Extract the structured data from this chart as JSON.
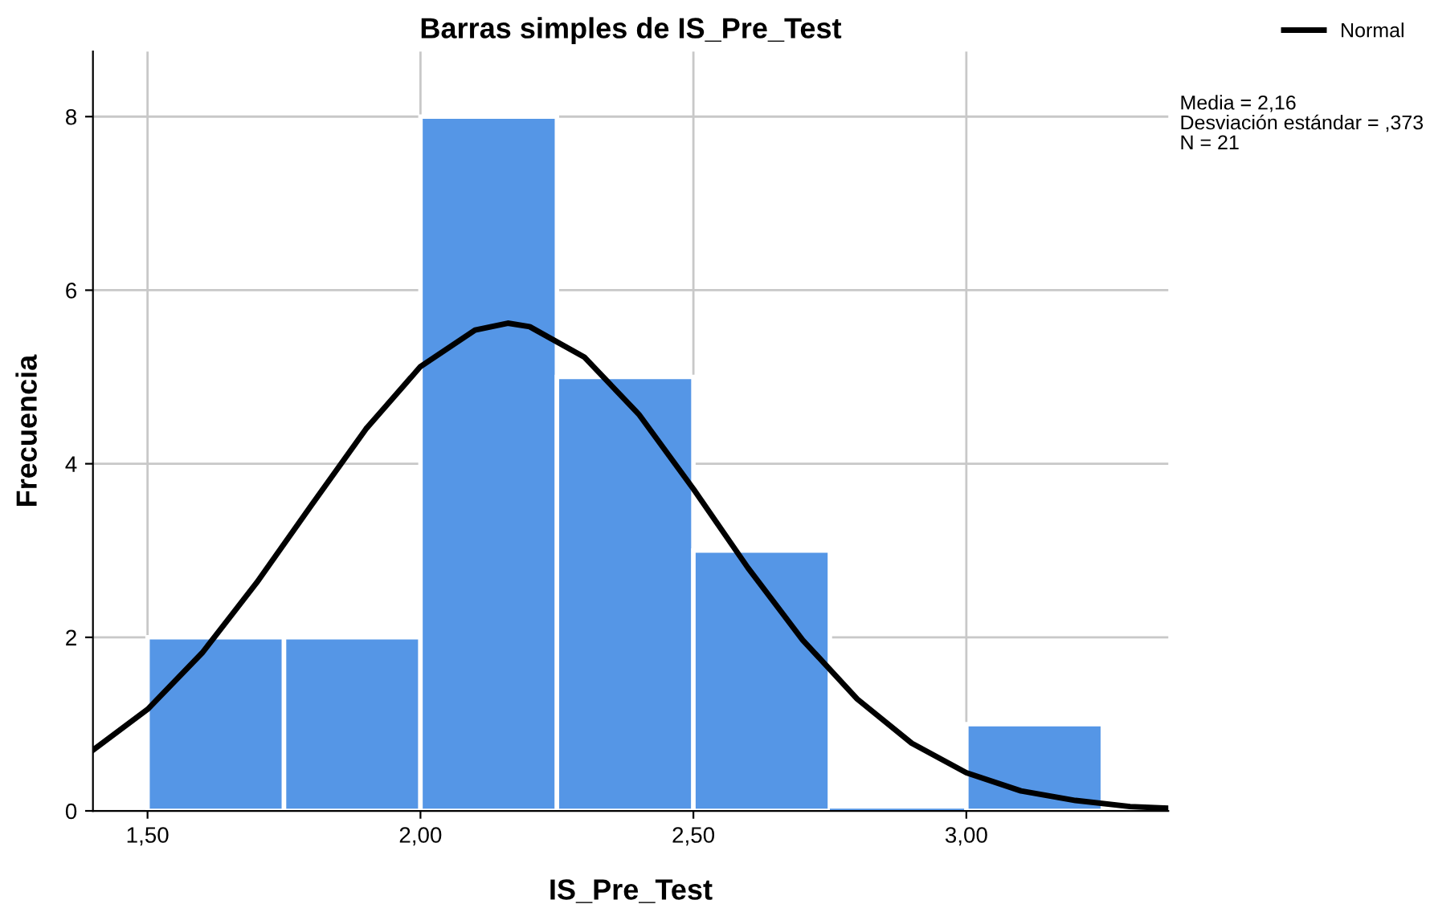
{
  "chart_data": {
    "type": "histogram",
    "title": "Barras simples de IS_Pre_Test",
    "xlabel": "IS_Pre_Test",
    "ylabel": "Frecuencia",
    "bins": [
      1.5,
      1.75,
      2.0,
      2.25,
      2.5,
      2.75,
      3.0,
      3.25
    ],
    "series": [
      {
        "color": "#5596e6",
        "values": [
          2,
          2,
          8,
          5,
          3,
          0,
          1
        ]
      },
      {
        "type": "line",
        "name": "Normal",
        "color": "#000000",
        "x": [
          1.4,
          1.5,
          1.6,
          1.7,
          1.8,
          1.9,
          2.0,
          2.1,
          2.16,
          2.2,
          2.3,
          2.4,
          2.5,
          2.6,
          2.7,
          2.8,
          2.9,
          3.0,
          3.1,
          3.2,
          3.3,
          3.37
        ],
        "values": [
          0.7,
          1.17,
          1.82,
          2.63,
          3.52,
          4.4,
          5.12,
          5.54,
          5.62,
          5.58,
          5.23,
          4.57,
          3.71,
          2.8,
          1.97,
          1.29,
          0.78,
          0.44,
          0.23,
          0.12,
          0.05,
          0.03
        ]
      }
    ],
    "xlim": [
      1.4,
      3.37
    ],
    "ylim": [
      0,
      8.75
    ],
    "xticks": [
      {
        "value": 1.5,
        "label": "1,50"
      },
      {
        "value": 2.0,
        "label": "2,00"
      },
      {
        "value": 2.5,
        "label": "2,50"
      },
      {
        "value": 3.0,
        "label": "3,00"
      }
    ],
    "yticks": [
      0,
      2,
      4,
      6,
      8
    ],
    "grid": true,
    "legend": "top right",
    "annotations": [
      "Media = 2,16",
      "Desviación estándar = ,373",
      "N = 21"
    ]
  }
}
